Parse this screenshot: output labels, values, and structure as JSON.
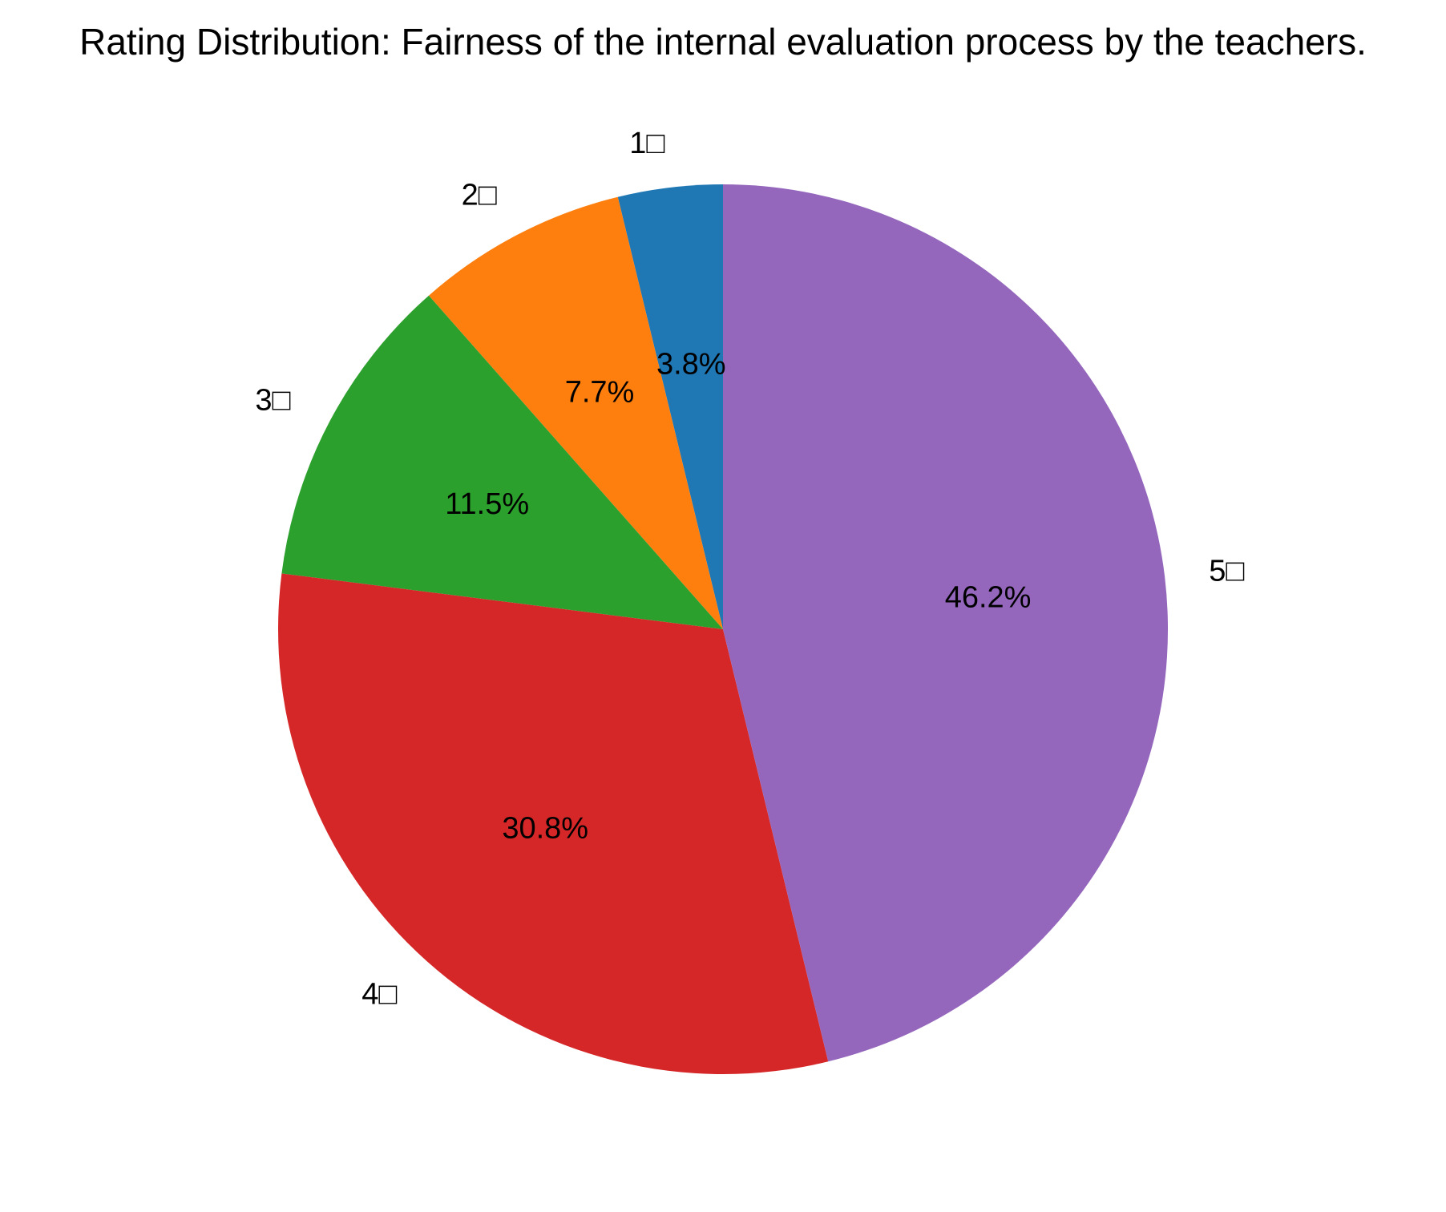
{
  "chart_data": {
    "type": "pie",
    "title": "Rating Distribution: Fairness of the internal evaluation process by the teachers.",
    "categories": [
      "1□",
      "2□",
      "3□",
      "4□",
      "5□"
    ],
    "values": [
      3.8,
      7.7,
      11.5,
      30.8,
      46.2
    ],
    "value_labels": [
      "3.8%",
      "7.7%",
      "11.5%",
      "30.8%",
      "46.2%"
    ],
    "colors": [
      "#1f77b4",
      "#ff7f0e",
      "#2ca02c",
      "#d62728",
      "#9467bd"
    ],
    "start_angle_deg": 90,
    "direction": "counterclockwise"
  }
}
